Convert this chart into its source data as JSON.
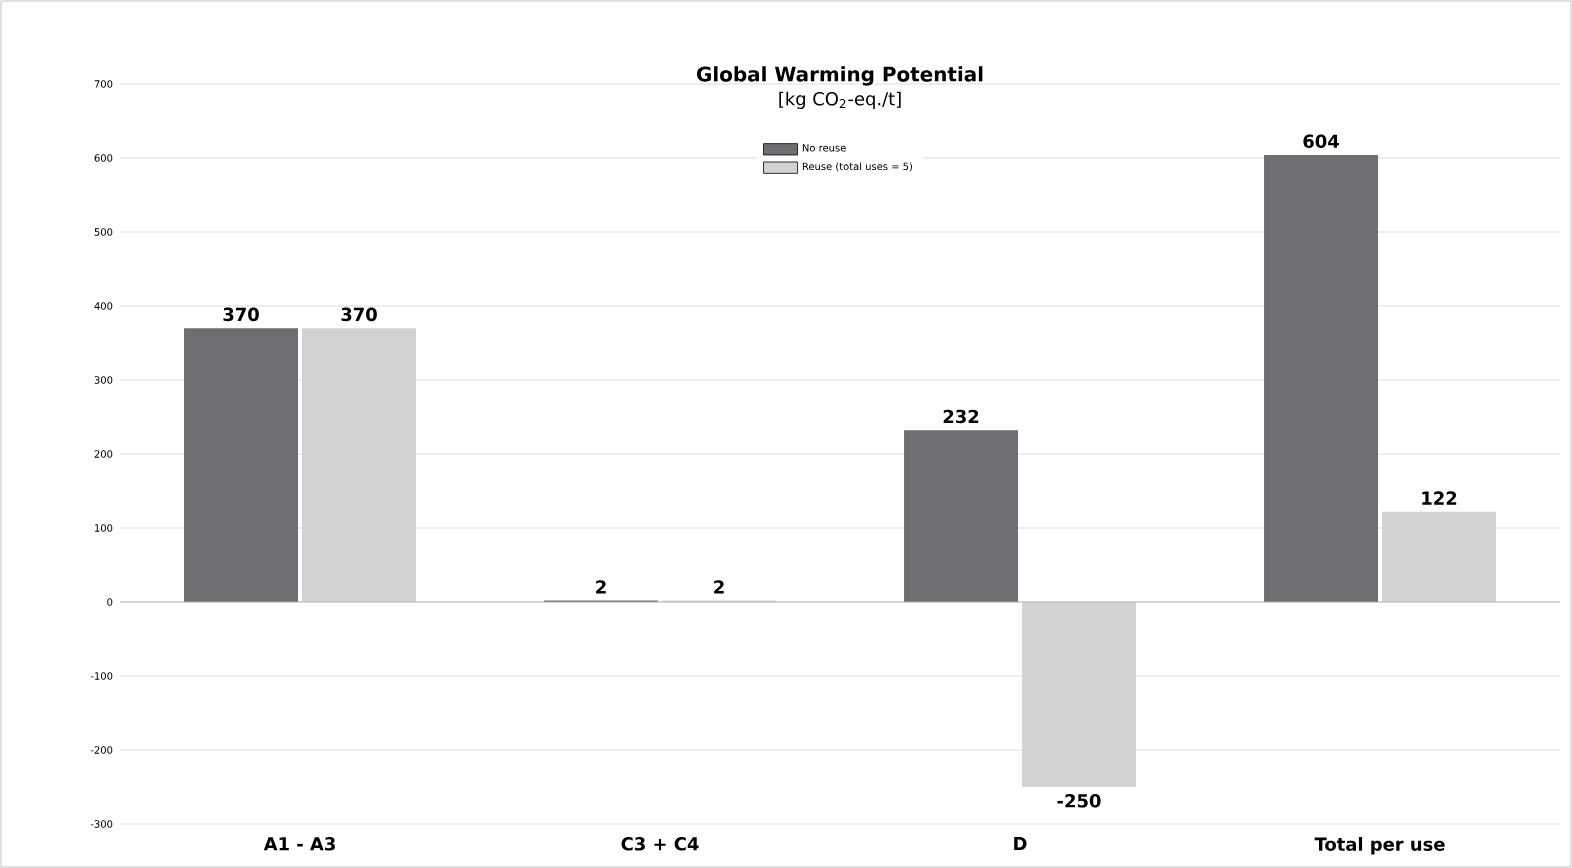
{
  "chart_data": {
    "type": "bar",
    "title": "Global Warming Potential",
    "subtitle": "[kg CO$_{2}$-eq./t]",
    "categories": [
      "A1 - A3",
      "C3 + C4",
      "D",
      "Total per use"
    ],
    "series": [
      {
        "name": "No reuse",
        "color": "#6d6e71",
        "values": [
          370,
          2,
          232,
          604
        ]
      },
      {
        "name": "Reuse (total uses = 5)",
        "color": "#d1d2d4",
        "values": [
          370,
          2,
          -250,
          122
        ]
      }
    ],
    "ylim": [
      -300,
      700
    ],
    "yticks": [
      -300,
      -200,
      -100,
      0,
      100,
      200,
      300,
      400,
      500,
      600,
      700
    ],
    "grid": "y",
    "legend": "top",
    "data_labels": true
  }
}
